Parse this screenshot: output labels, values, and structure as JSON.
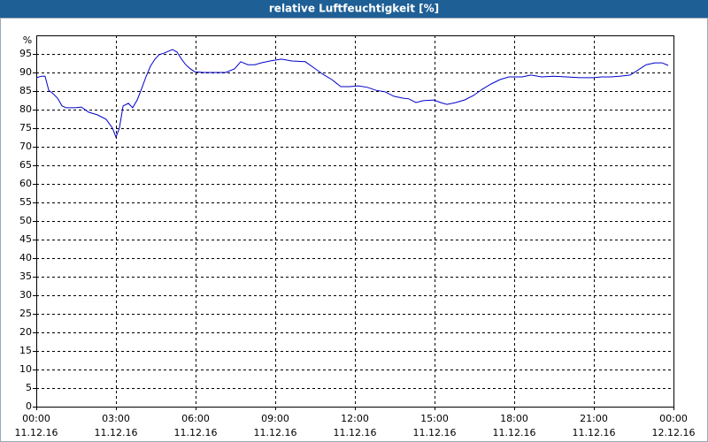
{
  "chart_data": {
    "type": "line",
    "title": "relative Luftfeuchtigkeit [%]",
    "y_label": "%",
    "x": [
      0,
      0.2,
      0.33,
      0.47,
      0.63,
      0.8,
      0.97,
      1.13,
      1.47,
      1.7,
      1.97,
      2.3,
      2.63,
      2.87,
      3,
      3.13,
      3.27,
      3.47,
      3.63,
      3.8,
      3.97,
      4.13,
      4.3,
      4.47,
      4.63,
      4.8,
      4.97,
      5.13,
      5.3,
      5.47,
      5.63,
      5.8,
      5.97,
      6.3,
      6.63,
      7.13,
      7.47,
      7.7,
      7.97,
      8.23,
      8.47,
      8.8,
      9.23,
      9.63,
      10.13,
      10.47,
      10.8,
      11.13,
      11.47,
      11.8,
      12.13,
      12.47,
      12.8,
      13.13,
      13.47,
      13.8,
      14.03,
      14.3,
      14.57,
      14.97,
      15.23,
      15.47,
      15.8,
      16.13,
      16.47,
      16.8,
      17.13,
      17.47,
      17.8,
      18.3,
      18.63,
      19.03,
      19.47,
      19.97,
      20.47,
      20.97,
      21.3,
      21.63,
      21.97,
      22.37,
      22.63,
      22.97,
      23.3,
      23.57,
      23.8
    ],
    "series": [
      {
        "name": "relative Luftfeuchtigkeit",
        "color": "#0000cc",
        "values": [
          88.6,
          89,
          89,
          85.2,
          84.3,
          83.1,
          81,
          80.5,
          80.5,
          80.7,
          79.3,
          78.6,
          77.4,
          75,
          72.6,
          75,
          81,
          81.7,
          80.5,
          82.6,
          85.7,
          88.8,
          91.7,
          93.6,
          94.8,
          95.2,
          95.7,
          96.2,
          95.5,
          93.6,
          92.1,
          91,
          90.2,
          90,
          90,
          90,
          91,
          92.9,
          92.1,
          92.1,
          92.6,
          93.1,
          93.6,
          93.1,
          92.9,
          91.2,
          89.5,
          88.1,
          86.2,
          86.2,
          86.4,
          86,
          85.2,
          84.8,
          83.6,
          83.1,
          82.9,
          81.9,
          82.4,
          82.6,
          81.9,
          81.4,
          81.9,
          82.6,
          83.8,
          85.5,
          86.9,
          88.1,
          88.8,
          88.8,
          89.3,
          88.8,
          89,
          88.8,
          88.6,
          88.6,
          88.8,
          88.8,
          89,
          89.3,
          90.5,
          92.1,
          92.6,
          92.6,
          91.9
        ]
      }
    ],
    "xlim": [
      0,
      24
    ],
    "xticks": [
      {
        "value": 0,
        "label": "00:00",
        "sublabel": "11.12.16"
      },
      {
        "value": 3,
        "label": "03:00",
        "sublabel": "11.12.16"
      },
      {
        "value": 6,
        "label": "06:00",
        "sublabel": "11.12.16"
      },
      {
        "value": 9,
        "label": "09:00",
        "sublabel": "11.12.16"
      },
      {
        "value": 12,
        "label": "12:00",
        "sublabel": "11.12.16"
      },
      {
        "value": 15,
        "label": "15:00",
        "sublabel": "11.12.16"
      },
      {
        "value": 18,
        "label": "18:00",
        "sublabel": "11.12.16"
      },
      {
        "value": 21,
        "label": "21:00",
        "sublabel": "11.12.16"
      },
      {
        "value": 24,
        "label": "00:00",
        "sublabel": "12.12.16"
      }
    ],
    "ylim": [
      0,
      100
    ],
    "yticks": [
      0,
      5,
      10,
      15,
      20,
      25,
      30,
      35,
      40,
      45,
      50,
      55,
      60,
      65,
      70,
      75,
      80,
      85,
      90,
      95
    ],
    "grid": true
  }
}
